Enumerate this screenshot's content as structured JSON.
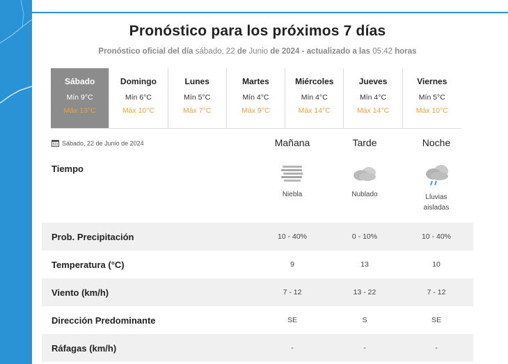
{
  "header": {
    "title": "Pronóstico para los próximos 7 días",
    "subtitle_prefix": "Pronóstico oficial del",
    "subtitle_dia": "día",
    "subtitle_dayname": "sábado, 22",
    "subtitle_de1": "de",
    "subtitle_mes": "Junio",
    "subtitle_de2": "de",
    "subtitle_year_act": "2024 - actualizado a las",
    "subtitle_time": "05:42",
    "subtitle_horas": "horas"
  },
  "days": [
    {
      "name": "Sábado",
      "min": "Mín 9°C",
      "max": "Máx 13°C",
      "active": true
    },
    {
      "name": "Domingo",
      "min": "Mín 6°C",
      "max": "Máx 10°C"
    },
    {
      "name": "Lunes",
      "min": "Mín 5°C",
      "max": "Máx 7°C"
    },
    {
      "name": "Martes",
      "min": "Mín 4°C",
      "max": "Máx 9°C"
    },
    {
      "name": "Miércoles",
      "min": "Mín 4°C",
      "max": "Máx 14°C"
    },
    {
      "name": "Jueves",
      "min": "Mín 4°C",
      "max": "Máx 14°C"
    },
    {
      "name": "Viernes",
      "min": "Mín 5°C",
      "max": "Máx 10°C"
    }
  ],
  "detail": {
    "date": "Sábado, 22 de Junio de 2024",
    "columns": [
      "Mañana",
      "Tarde",
      "Noche"
    ],
    "tiempo_label": "Tiempo",
    "conditions": [
      {
        "label": "Niebla",
        "icon": "fog-icon"
      },
      {
        "label": "Nublado",
        "icon": "cloud-icon"
      },
      {
        "label": "Lluvias aisladas",
        "icon": "rain-cloud-icon"
      }
    ],
    "rows": [
      {
        "name": "Prob. Precipitación",
        "values": [
          "10 - 40%",
          "0 - 10%",
          "10 - 40%"
        ]
      },
      {
        "name": "Temperatura (°C)",
        "values": [
          "9",
          "13",
          "10"
        ]
      },
      {
        "name": "Viento (km/h)",
        "values": [
          "7 - 12",
          "13 - 22",
          "7 - 12"
        ]
      },
      {
        "name": "Dirección Predominante",
        "values": [
          "SE",
          "S",
          "SE"
        ]
      },
      {
        "name": "Ráfagas (km/h)",
        "values": [
          "-",
          "-",
          "-"
        ]
      }
    ]
  },
  "colors": {
    "accent_blue": "#2a93d6",
    "active_tab": "#8c8c8c",
    "max_temp": "#e7a53c",
    "row_shade": "#f0f0f0"
  }
}
